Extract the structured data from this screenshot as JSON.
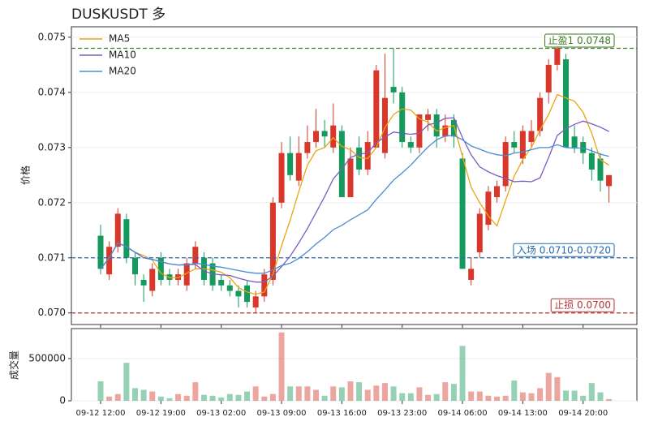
{
  "chart_data": {
    "type": "candlestick",
    "title": "DUSKUSDT 多",
    "ylabel": "价格",
    "volume_ylabel": "成交量",
    "categories": [
      "09-12 12:00",
      null,
      null,
      null,
      null,
      null,
      null,
      "09-12 19:00",
      null,
      null,
      null,
      null,
      null,
      null,
      "09-13 02:00",
      null,
      null,
      null,
      null,
      null,
      null,
      "09-13 09:00",
      null,
      null,
      null,
      null,
      null,
      null,
      "09-13 16:00",
      null,
      null,
      null,
      null,
      null,
      null,
      "09-13 23:00",
      null,
      null,
      null,
      null,
      null,
      null,
      "09-14 06:00",
      null,
      null,
      null,
      null,
      null,
      null,
      "09-14 13:00",
      null,
      null,
      null,
      null,
      null,
      null,
      "09-14 20:00",
      null,
      null,
      null
    ],
    "open": [
      0.0714,
      0.0707,
      0.0712,
      0.0717,
      0.071,
      0.0706,
      0.0704,
      0.071,
      0.0707,
      0.0706,
      0.0705,
      0.0709,
      0.071,
      0.0709,
      0.0706,
      0.0705,
      0.0704,
      0.0705,
      0.0701,
      0.0703,
      0.0706,
      0.072,
      0.0729,
      0.0724,
      0.0729,
      0.0731,
      0.0733,
      0.073,
      0.0733,
      0.0721,
      0.073,
      0.0726,
      0.073,
      0.0729,
      0.0741,
      0.074,
      0.0731,
      0.073,
      0.0735,
      0.0736,
      0.0732,
      0.0735,
      0.0728,
      0.0706,
      0.0711,
      0.0716,
      0.0721,
      0.0723,
      0.0731,
      0.0728,
      0.0731,
      0.0733,
      0.074,
      0.0745,
      0.0746,
      0.0732,
      0.0731,
      0.0729,
      0.0728,
      0.0723
    ],
    "high": [
      0.0716,
      0.0713,
      0.0719,
      0.0718,
      0.0711,
      0.0707,
      0.0709,
      0.0711,
      0.0708,
      0.0708,
      0.071,
      0.0713,
      0.0711,
      0.071,
      0.0707,
      0.0706,
      0.0705,
      0.0706,
      0.0704,
      0.0708,
      0.0721,
      0.0731,
      0.0732,
      0.0732,
      0.0734,
      0.0737,
      0.0735,
      0.0738,
      0.0734,
      0.073,
      0.0732,
      0.0733,
      0.0745,
      0.0747,
      0.0748,
      0.0741,
      0.0732,
      0.0736,
      0.0737,
      0.0737,
      0.0736,
      0.0736,
      0.0729,
      0.071,
      0.0719,
      0.0723,
      0.0724,
      0.0732,
      0.0733,
      0.0734,
      0.0735,
      0.074,
      0.0746,
      0.075,
      0.0747,
      0.0734,
      0.0732,
      0.073,
      0.0729,
      0.0725
    ],
    "low": [
      0.0707,
      0.0706,
      0.0711,
      0.0709,
      0.0705,
      0.0702,
      0.0703,
      0.0705,
      0.0705,
      0.0705,
      0.0704,
      0.0708,
      0.0705,
      0.0704,
      0.0704,
      0.0703,
      0.0701,
      0.0701,
      0.07,
      0.0702,
      0.0705,
      0.0719,
      0.0724,
      0.0723,
      0.0728,
      0.073,
      0.073,
      0.0729,
      0.0721,
      0.0721,
      0.0725,
      0.0725,
      0.073,
      0.0728,
      0.0738,
      0.073,
      0.0729,
      0.0729,
      0.0733,
      0.073,
      0.0731,
      0.073,
      0.0708,
      0.0705,
      0.071,
      0.0715,
      0.072,
      0.0722,
      0.0729,
      0.0727,
      0.073,
      0.0732,
      0.0738,
      0.0744,
      0.073,
      0.0729,
      0.0727,
      0.0724,
      0.0722,
      0.072
    ],
    "close": [
      0.0708,
      0.0712,
      0.0718,
      0.071,
      0.0707,
      0.0705,
      0.0708,
      0.0706,
      0.0706,
      0.0707,
      0.0709,
      0.0712,
      0.0706,
      0.0705,
      0.0705,
      0.0704,
      0.0703,
      0.0702,
      0.0703,
      0.0707,
      0.072,
      0.0729,
      0.0725,
      0.0729,
      0.0731,
      0.0733,
      0.0732,
      0.0734,
      0.0721,
      0.0728,
      0.0726,
      0.0731,
      0.0744,
      0.0739,
      0.074,
      0.0731,
      0.073,
      0.0736,
      0.0736,
      0.0732,
      0.0734,
      0.0732,
      0.0708,
      0.0708,
      0.0718,
      0.0722,
      0.0723,
      0.0731,
      0.073,
      0.0733,
      0.0733,
      0.0739,
      0.0745,
      0.0748,
      0.073,
      0.073,
      0.0729,
      0.0726,
      0.0724,
      0.0725
    ],
    "volume": [
      230000,
      50000,
      80000,
      450000,
      150000,
      130000,
      110000,
      50000,
      30000,
      80000,
      60000,
      220000,
      70000,
      60000,
      40000,
      80000,
      70000,
      110000,
      170000,
      50000,
      80000,
      810000,
      170000,
      170000,
      170000,
      130000,
      60000,
      170000,
      160000,
      230000,
      220000,
      130000,
      180000,
      210000,
      170000,
      90000,
      90000,
      160000,
      70000,
      80000,
      220000,
      200000,
      650000,
      110000,
      110000,
      60000,
      50000,
      60000,
      240000,
      100000,
      90000,
      150000,
      330000,
      280000,
      120000,
      120000,
      60000,
      210000,
      100000,
      20000
    ],
    "up_color": "#d8372a",
    "down_color": "#139a5c",
    "series": [
      {
        "name": "MA5",
        "color": "#eaa50f",
        "values": [
          0.0708,
          0.071,
          0.07127,
          0.0712,
          0.0711,
          0.07104,
          0.07096,
          0.07072,
          0.07064,
          0.07064,
          0.07072,
          0.0708,
          0.0708,
          0.07078,
          0.07074,
          0.07064,
          0.07046,
          0.07038,
          0.07034,
          0.07038,
          0.0707,
          0.07122,
          0.07168,
          0.0722,
          0.07268,
          0.07294,
          0.073,
          0.07318,
          0.07302,
          0.07296,
          0.07282,
          0.0728,
          0.073,
          0.07336,
          0.0736,
          0.0737,
          0.07368,
          0.07352,
          0.07346,
          0.0733,
          0.07336,
          0.0734,
          0.07284,
          0.07228,
          0.072,
          0.07176,
          0.07158,
          0.07204,
          0.07248,
          0.07278,
          0.073,
          0.07332,
          0.0736,
          0.07396,
          0.0739,
          0.07384,
          0.07364,
          0.07326,
          0.07278,
          0.07268
        ]
      },
      {
        "name": "MA10",
        "color": "#7c5cc4",
        "values": [
          0.0708,
          0.071,
          0.07127,
          0.0712,
          0.0711,
          0.071,
          0.07097,
          0.07093,
          0.07089,
          0.07087,
          0.07088,
          0.07088,
          0.07076,
          0.07071,
          0.07069,
          0.07068,
          0.07063,
          0.07059,
          0.07056,
          0.07056,
          0.07067,
          0.07084,
          0.07103,
          0.07127,
          0.07153,
          0.07182,
          0.07211,
          0.07243,
          0.07261,
          0.07282,
          0.07288,
          0.0729,
          0.07309,
          0.07319,
          0.07328,
          0.07326,
          0.07324,
          0.07326,
          0.07341,
          0.07345,
          0.07353,
          0.07354,
          0.07318,
          0.07287,
          0.07265,
          0.07256,
          0.07249,
          0.07244,
          0.07238,
          0.07239,
          0.07238,
          0.07245,
          0.07282,
          0.07322,
          0.07334,
          0.07342,
          0.07348,
          0.07343,
          0.07337,
          0.07329
        ]
      },
      {
        "name": "MA20",
        "color": "#4a8ad4",
        "values": [
          0.0708,
          0.071,
          0.07127,
          0.0712,
          0.0711,
          0.071,
          0.07097,
          0.07093,
          0.07089,
          0.07087,
          0.07087,
          0.0709,
          0.07088,
          0.07085,
          0.07083,
          0.0708,
          0.07077,
          0.07074,
          0.07072,
          0.07072,
          0.07078,
          0.07086,
          0.0709,
          0.07099,
          0.07111,
          0.07125,
          0.07137,
          0.07151,
          0.07159,
          0.07169,
          0.07178,
          0.07187,
          0.07206,
          0.07223,
          0.07241,
          0.07254,
          0.07268,
          0.07285,
          0.07301,
          0.07314,
          0.07321,
          0.07322,
          0.07314,
          0.07303,
          0.07297,
          0.07291,
          0.07287,
          0.07285,
          0.0729,
          0.07292,
          0.07296,
          0.073,
          0.073,
          0.07305,
          0.073,
          0.07299,
          0.07299,
          0.07294,
          0.07288,
          0.07284
        ]
      }
    ],
    "levels": [
      {
        "label": "止盈1 0.0748",
        "value": 0.0748,
        "color": "#3f7a24"
      },
      {
        "label": "入场 0.0710-0.0720",
        "value": 0.071,
        "color": "#2a6aa8"
      },
      {
        "label": "止损 0.0700",
        "value": 0.07,
        "color": "#b03434"
      }
    ],
    "ylim": [
      0.06979,
      0.07519
    ],
    "yticks": [
      {
        "value": 0.07,
        "label": "0.070"
      },
      {
        "value": 0.071,
        "label": "0.071"
      },
      {
        "value": 0.072,
        "label": "0.072"
      },
      {
        "value": 0.073,
        "label": "0.073"
      },
      {
        "value": 0.074,
        "label": "0.074"
      },
      {
        "value": 0.075,
        "label": "0.075"
      }
    ],
    "volume_ylim": [
      0,
      855000
    ],
    "volume_yticks": [
      0,
      500000
    ],
    "grid": true,
    "legend": "upper left"
  }
}
